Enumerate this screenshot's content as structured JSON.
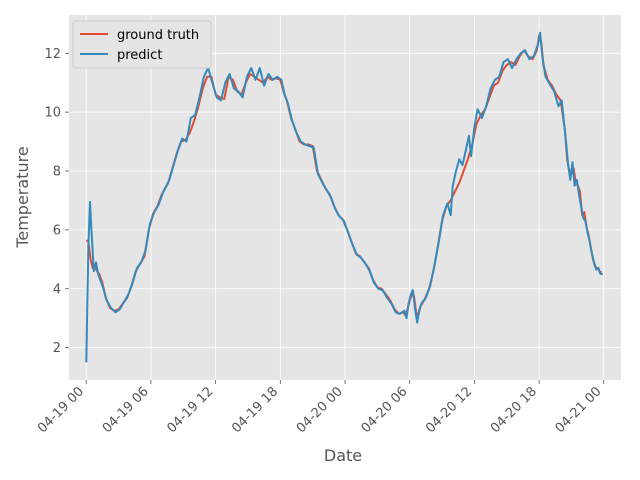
{
  "chart_data": {
    "type": "line",
    "xlabel": "Date",
    "ylabel": "Temperature",
    "x_unit": "hour",
    "x_start": "04-19 00",
    "xlim": [
      -1.6,
      49.6
    ],
    "ylim": [
      0.9,
      13.3
    ],
    "xticks": [
      {
        "x": 0,
        "label": "04-19 00"
      },
      {
        "x": 6,
        "label": "04-19 06"
      },
      {
        "x": 12,
        "label": "04-19 12"
      },
      {
        "x": 18,
        "label": "04-19 18"
      },
      {
        "x": 24,
        "label": "04-20 00"
      },
      {
        "x": 30,
        "label": "04-20 06"
      },
      {
        "x": 36,
        "label": "04-20 12"
      },
      {
        "x": 42,
        "label": "04-20 18"
      },
      {
        "x": 48,
        "label": "04-21 00"
      }
    ],
    "yticks": [
      2,
      4,
      6,
      8,
      10,
      12
    ],
    "grid": true,
    "legend_position": "top-left",
    "colors": {
      "ground_truth": "#e24a33",
      "predict": "#348abd",
      "background": "#e5e5e5",
      "grid": "#ffffff"
    },
    "series": [
      {
        "name": "ground truth",
        "color": "#e24a33",
        "points": [
          [
            0,
            5.65
          ],
          [
            0.2,
            5.6
          ],
          [
            0.4,
            5.0
          ],
          [
            0.6,
            4.7
          ],
          [
            0.8,
            4.8
          ],
          [
            1.0,
            4.6
          ],
          [
            1.2,
            4.5
          ],
          [
            1.5,
            4.2
          ],
          [
            1.8,
            3.7
          ],
          [
            2.2,
            3.35
          ],
          [
            2.6,
            3.25
          ],
          [
            3.0,
            3.3
          ],
          [
            3.4,
            3.5
          ],
          [
            3.8,
            3.7
          ],
          [
            4.2,
            4.1
          ],
          [
            4.6,
            4.6
          ],
          [
            5.0,
            4.85
          ],
          [
            5.4,
            5.1
          ],
          [
            5.8,
            6.0
          ],
          [
            6.2,
            6.55
          ],
          [
            6.6,
            6.8
          ],
          [
            7.0,
            7.2
          ],
          [
            7.6,
            7.6
          ],
          [
            8.0,
            8.1
          ],
          [
            8.4,
            8.6
          ],
          [
            8.8,
            9.0
          ],
          [
            9.2,
            9.05
          ],
          [
            9.6,
            9.3
          ],
          [
            10.0,
            9.7
          ],
          [
            10.4,
            10.2
          ],
          [
            10.8,
            10.8
          ],
          [
            11.2,
            11.2
          ],
          [
            11.6,
            11.2
          ],
          [
            12.0,
            10.6
          ],
          [
            12.4,
            10.5
          ],
          [
            12.8,
            10.45
          ],
          [
            13.2,
            11.2
          ],
          [
            13.6,
            11.1
          ],
          [
            14.0,
            10.7
          ],
          [
            14.4,
            10.6
          ],
          [
            14.8,
            11.0
          ],
          [
            15.2,
            11.3
          ],
          [
            15.6,
            11.2
          ],
          [
            16.0,
            11.1
          ],
          [
            16.4,
            11.0
          ],
          [
            16.8,
            11.2
          ],
          [
            17.2,
            11.1
          ],
          [
            17.6,
            11.15
          ],
          [
            18.0,
            11.1
          ],
          [
            18.3,
            10.7
          ],
          [
            18.6,
            10.4
          ],
          [
            19.0,
            9.8
          ],
          [
            19.4,
            9.4
          ],
          [
            19.8,
            9.0
          ],
          [
            20.2,
            8.9
          ],
          [
            20.6,
            8.9
          ],
          [
            21.0,
            8.85
          ],
          [
            21.4,
            8.0
          ],
          [
            21.8,
            7.7
          ],
          [
            22.2,
            7.4
          ],
          [
            22.6,
            7.2
          ],
          [
            23.0,
            6.8
          ],
          [
            23.4,
            6.5
          ],
          [
            23.8,
            6.35
          ],
          [
            24.2,
            6.0
          ],
          [
            24.6,
            5.6
          ],
          [
            25.0,
            5.2
          ],
          [
            25.4,
            5.1
          ],
          [
            25.8,
            4.9
          ],
          [
            26.2,
            4.7
          ],
          [
            26.6,
            4.3
          ],
          [
            27.0,
            4.05
          ],
          [
            27.4,
            4.0
          ],
          [
            27.8,
            3.8
          ],
          [
            28.2,
            3.6
          ],
          [
            28.6,
            3.3
          ],
          [
            29.0,
            3.15
          ],
          [
            29.4,
            3.2
          ],
          [
            29.6,
            3.1
          ],
          [
            29.8,
            3.3
          ],
          [
            30.0,
            3.6
          ],
          [
            30.2,
            3.8
          ],
          [
            30.4,
            3.75
          ],
          [
            30.6,
            3.2
          ],
          [
            30.8,
            3.1
          ],
          [
            31.0,
            3.4
          ],
          [
            31.4,
            3.65
          ],
          [
            31.8,
            4.0
          ],
          [
            32.2,
            4.6
          ],
          [
            32.6,
            5.4
          ],
          [
            33.0,
            6.3
          ],
          [
            33.4,
            6.8
          ],
          [
            33.8,
            7.0
          ],
          [
            34.2,
            7.3
          ],
          [
            34.6,
            7.6
          ],
          [
            35.0,
            8.0
          ],
          [
            35.4,
            8.4
          ],
          [
            35.8,
            8.9
          ],
          [
            36.2,
            9.6
          ],
          [
            36.6,
            9.9
          ],
          [
            37.0,
            10.1
          ],
          [
            37.4,
            10.5
          ],
          [
            37.8,
            10.9
          ],
          [
            38.2,
            11.0
          ],
          [
            38.6,
            11.4
          ],
          [
            39.0,
            11.6
          ],
          [
            39.4,
            11.7
          ],
          [
            39.8,
            11.6
          ],
          [
            40.2,
            11.9
          ],
          [
            40.6,
            12.1
          ],
          [
            41.0,
            11.9
          ],
          [
            41.4,
            11.8
          ],
          [
            41.8,
            12.1
          ],
          [
            42.0,
            12.6
          ],
          [
            42.2,
            12.4
          ],
          [
            42.4,
            11.6
          ],
          [
            42.8,
            11.1
          ],
          [
            43.2,
            10.9
          ],
          [
            43.6,
            10.6
          ],
          [
            44.0,
            10.4
          ],
          [
            44.4,
            9.4
          ],
          [
            44.6,
            8.4
          ],
          [
            44.8,
            8.0
          ],
          [
            45.0,
            7.9
          ],
          [
            45.2,
            8.1
          ],
          [
            45.4,
            7.6
          ],
          [
            45.6,
            7.5
          ],
          [
            45.8,
            7.3
          ],
          [
            46.0,
            6.5
          ],
          [
            46.2,
            6.6
          ],
          [
            46.4,
            6.1
          ],
          [
            46.6,
            5.8
          ],
          [
            46.8,
            5.4
          ],
          [
            47.0,
            5.0
          ],
          [
            47.2,
            4.75
          ],
          [
            47.4,
            4.7
          ],
          [
            47.6,
            4.6
          ],
          [
            47.8,
            4.55
          ]
        ]
      },
      {
        "name": "predict",
        "color": "#348abd",
        "points": [
          [
            0,
            1.5
          ],
          [
            0.1,
            3.5
          ],
          [
            0.2,
            5.5
          ],
          [
            0.35,
            6.95
          ],
          [
            0.5,
            5.9
          ],
          [
            0.7,
            4.6
          ],
          [
            0.9,
            4.9
          ],
          [
            1.1,
            4.5
          ],
          [
            1.3,
            4.3
          ],
          [
            1.6,
            4.0
          ],
          [
            1.9,
            3.6
          ],
          [
            2.3,
            3.35
          ],
          [
            2.7,
            3.2
          ],
          [
            3.1,
            3.3
          ],
          [
            3.5,
            3.55
          ],
          [
            3.9,
            3.8
          ],
          [
            4.3,
            4.2
          ],
          [
            4.7,
            4.7
          ],
          [
            5.1,
            4.9
          ],
          [
            5.5,
            5.3
          ],
          [
            5.9,
            6.2
          ],
          [
            6.3,
            6.6
          ],
          [
            6.7,
            6.85
          ],
          [
            7.1,
            7.25
          ],
          [
            7.7,
            7.7
          ],
          [
            8.1,
            8.2
          ],
          [
            8.5,
            8.7
          ],
          [
            8.9,
            9.1
          ],
          [
            9.3,
            9.0
          ],
          [
            9.7,
            9.8
          ],
          [
            10.1,
            9.9
          ],
          [
            10.5,
            10.5
          ],
          [
            10.9,
            11.2
          ],
          [
            11.3,
            11.5
          ],
          [
            11.7,
            11.0
          ],
          [
            12.1,
            10.5
          ],
          [
            12.5,
            10.4
          ],
          [
            12.9,
            11.0
          ],
          [
            13.3,
            11.3
          ],
          [
            13.7,
            10.8
          ],
          [
            14.1,
            10.7
          ],
          [
            14.5,
            10.5
          ],
          [
            14.9,
            11.2
          ],
          [
            15.3,
            11.5
          ],
          [
            15.7,
            11.1
          ],
          [
            16.1,
            11.5
          ],
          [
            16.5,
            10.9
          ],
          [
            16.9,
            11.3
          ],
          [
            17.3,
            11.1
          ],
          [
            17.7,
            11.2
          ],
          [
            18.1,
            11.1
          ],
          [
            18.4,
            10.6
          ],
          [
            18.7,
            10.3
          ],
          [
            19.1,
            9.7
          ],
          [
            19.5,
            9.3
          ],
          [
            19.9,
            9.0
          ],
          [
            20.3,
            8.9
          ],
          [
            20.7,
            8.85
          ],
          [
            21.1,
            8.8
          ],
          [
            21.5,
            7.9
          ],
          [
            21.9,
            7.6
          ],
          [
            22.3,
            7.35
          ],
          [
            22.7,
            7.1
          ],
          [
            23.1,
            6.7
          ],
          [
            23.5,
            6.45
          ],
          [
            23.9,
            6.3
          ],
          [
            24.3,
            5.9
          ],
          [
            24.7,
            5.5
          ],
          [
            25.1,
            5.15
          ],
          [
            25.5,
            5.05
          ],
          [
            25.9,
            4.85
          ],
          [
            26.3,
            4.6
          ],
          [
            26.7,
            4.2
          ],
          [
            27.1,
            4.0
          ],
          [
            27.5,
            3.95
          ],
          [
            27.9,
            3.7
          ],
          [
            28.3,
            3.5
          ],
          [
            28.7,
            3.2
          ],
          [
            29.1,
            3.15
          ],
          [
            29.5,
            3.25
          ],
          [
            29.7,
            3.0
          ],
          [
            29.9,
            3.5
          ],
          [
            30.1,
            3.8
          ],
          [
            30.3,
            3.95
          ],
          [
            30.5,
            3.3
          ],
          [
            30.7,
            2.85
          ],
          [
            30.9,
            3.3
          ],
          [
            31.1,
            3.5
          ],
          [
            31.5,
            3.7
          ],
          [
            31.9,
            4.1
          ],
          [
            32.3,
            4.8
          ],
          [
            32.7,
            5.6
          ],
          [
            33.1,
            6.5
          ],
          [
            33.5,
            6.9
          ],
          [
            33.8,
            6.5
          ],
          [
            34.0,
            7.5
          ],
          [
            34.3,
            8.0
          ],
          [
            34.6,
            8.4
          ],
          [
            34.9,
            8.2
          ],
          [
            35.2,
            8.7
          ],
          [
            35.5,
            9.2
          ],
          [
            35.7,
            8.5
          ],
          [
            36.0,
            9.5
          ],
          [
            36.3,
            10.1
          ],
          [
            36.7,
            9.8
          ],
          [
            37.1,
            10.2
          ],
          [
            37.5,
            10.8
          ],
          [
            37.9,
            11.1
          ],
          [
            38.3,
            11.2
          ],
          [
            38.7,
            11.7
          ],
          [
            39.1,
            11.8
          ],
          [
            39.5,
            11.5
          ],
          [
            39.9,
            11.8
          ],
          [
            40.3,
            12.0
          ],
          [
            40.7,
            12.1
          ],
          [
            41.1,
            11.8
          ],
          [
            41.5,
            11.9
          ],
          [
            41.9,
            12.3
          ],
          [
            42.1,
            12.7
          ],
          [
            42.3,
            11.9
          ],
          [
            42.6,
            11.2
          ],
          [
            43.0,
            10.95
          ],
          [
            43.4,
            10.7
          ],
          [
            43.8,
            10.2
          ],
          [
            44.1,
            10.4
          ],
          [
            44.5,
            9.0
          ],
          [
            44.7,
            8.2
          ],
          [
            44.9,
            7.7
          ],
          [
            45.1,
            8.3
          ],
          [
            45.3,
            7.5
          ],
          [
            45.5,
            7.7
          ],
          [
            45.7,
            7.2
          ],
          [
            45.9,
            6.8
          ],
          [
            46.1,
            6.4
          ],
          [
            46.3,
            6.3
          ],
          [
            46.5,
            5.9
          ],
          [
            46.7,
            5.6
          ],
          [
            46.9,
            5.2
          ],
          [
            47.1,
            4.9
          ],
          [
            47.3,
            4.65
          ],
          [
            47.5,
            4.7
          ],
          [
            47.7,
            4.5
          ],
          [
            47.9,
            4.5
          ]
        ]
      }
    ]
  }
}
